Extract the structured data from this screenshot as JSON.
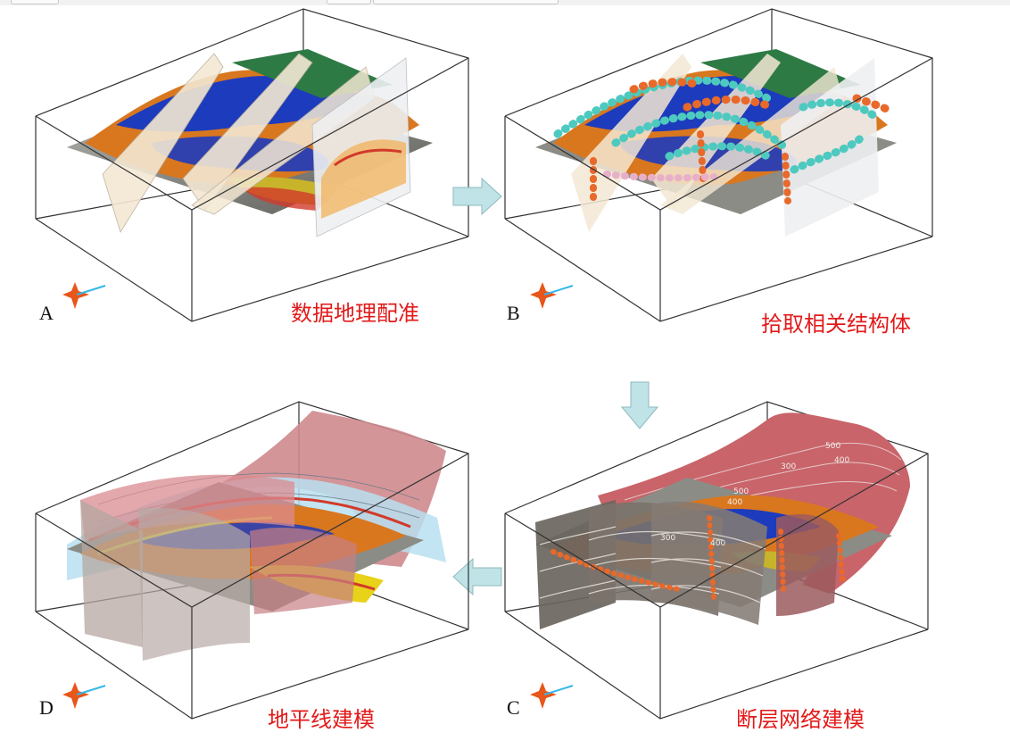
{
  "panels": [
    {
      "id": "A",
      "letter": "A",
      "caption": "数据地理配准"
    },
    {
      "id": "B",
      "letter": "B",
      "caption": "拾取相关结构体"
    },
    {
      "id": "C",
      "letter": "C",
      "caption": "断层网络建模"
    },
    {
      "id": "D",
      "letter": "D",
      "caption": "地平线建模"
    }
  ],
  "contour_labels": [
    "500",
    "400",
    "300",
    "500",
    "400",
    "300",
    "400"
  ],
  "flow": [
    "A",
    "B",
    "C",
    "D"
  ],
  "colors": {
    "caption": "#e21a1a",
    "arrow": "#bfe3e6",
    "arrow_stroke": "#8fb9bd",
    "fault": "#c9646a",
    "section": "#f3e8d3",
    "blue_unit": "#1d3bbd",
    "orange_unit": "#d9771f",
    "green_unit": "#2e7a45"
  }
}
